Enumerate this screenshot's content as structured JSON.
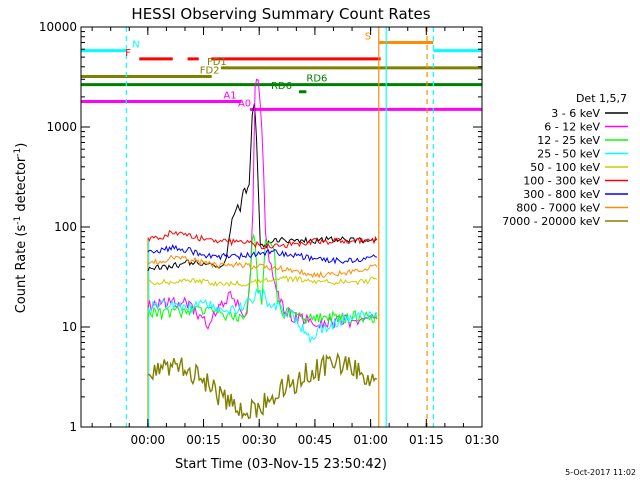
{
  "chart_data": {
    "type": "line",
    "title": "HESSI Observing Summary Count Rates",
    "xlabel": "Start Time (03-Nov-15 23:50:42)",
    "ylabel_main": "Count Rate (s",
    "ylabel_sup": "-1",
    "ylabel_tail": " detector",
    "ylabel_sup2": "-1",
    "ylabel_close": ")",
    "y_scale": "log",
    "ylim": [
      1,
      10000
    ],
    "xlim_minutes": [
      -8.7,
      99.3
    ],
    "x_ticks": [
      {
        "label": "00:00",
        "m": 9.3
      },
      {
        "label": "00:15",
        "m": 24.3
      },
      {
        "label": "00:30",
        "m": 39.3
      },
      {
        "label": "00:45",
        "m": 54.3
      },
      {
        "label": "01:00",
        "m": 69.3
      },
      {
        "label": "01:15",
        "m": 84.3
      },
      {
        "label": "01:30",
        "m": 99.3
      }
    ],
    "y_ticks": [
      {
        "label": "1",
        "v": 1
      },
      {
        "label": "10",
        "v": 10
      },
      {
        "label": "100",
        "v": 100
      },
      {
        "label": "1000",
        "v": 1000
      },
      {
        "label": "10000",
        "v": 10000
      }
    ],
    "legend_title": "Det 1,5,7",
    "legend_position": "right",
    "series": [
      {
        "name": "3 - 6 keV",
        "color": "#000000",
        "x": [
          9.3,
          12,
          15,
          18,
          21,
          24,
          26,
          28,
          29.5,
          30.5,
          32,
          33.5,
          34.2,
          35,
          35.8,
          36.6,
          37.4,
          38,
          38.6,
          39.6,
          40.5,
          41.2,
          41.8,
          42.6,
          43.4,
          45,
          48,
          51,
          54,
          57,
          60,
          63,
          66,
          69,
          71
        ],
        "y": [
          38,
          39,
          40,
          42,
          45,
          43,
          41,
          40,
          41,
          52,
          115,
          165,
          150,
          250,
          210,
          270,
          1300,
          1800,
          700,
          70,
          62,
          64,
          70,
          72,
          75,
          76,
          74,
          73,
          72,
          75,
          76,
          74,
          73,
          72,
          75
        ]
      },
      {
        "name": "6 - 12 keV",
        "color": "#ff00ff",
        "x": [
          9.3,
          12,
          15,
          18,
          20,
          22,
          24,
          25.5,
          26.5,
          28,
          30,
          31.5,
          33,
          34.5,
          36,
          37,
          37.6,
          38.2,
          39,
          40,
          41,
          42.5,
          44,
          46,
          48,
          50,
          53,
          56,
          59,
          62,
          65,
          68,
          71
        ],
        "y": [
          16,
          17,
          17.5,
          18,
          17,
          14,
          12,
          11,
          13,
          15,
          17,
          21,
          18,
          14,
          13,
          40,
          150,
          2700,
          3000,
          1100,
          80,
          40,
          22,
          15,
          13,
          12,
          12,
          11,
          11,
          12,
          11,
          11,
          12
        ]
      },
      {
        "name": "12 - 25 keV",
        "color": "#00ff00",
        "x": [
          9.3,
          13,
          17,
          21,
          25,
          29,
          32,
          34,
          35.5,
          36.6,
          37.4,
          38.2,
          39,
          40,
          41,
          42,
          43.4,
          44.2,
          45,
          46,
          48,
          51,
          54,
          57,
          60,
          63,
          66,
          69,
          71
        ],
        "y": [
          14,
          13.5,
          14,
          15,
          14,
          13,
          12.5,
          13,
          14,
          20,
          78,
          70,
          25,
          18,
          80,
          70,
          60,
          20,
          16,
          14,
          13,
          12.5,
          12,
          13,
          12.5,
          12,
          13,
          12.5,
          12
        ]
      },
      {
        "name": "25 - 50 keV",
        "color": "#00ffff",
        "x": [
          9.3,
          12,
          15,
          18,
          21,
          24,
          27,
          30,
          33,
          35,
          37,
          38.5,
          40,
          41.5,
          43,
          45,
          47,
          49,
          51,
          53,
          54,
          55,
          57,
          60,
          63,
          66,
          69,
          71
        ],
        "y": [
          15,
          16,
          17,
          16,
          16,
          17,
          15.5,
          14.5,
          15,
          16,
          18,
          21,
          22,
          18,
          16,
          15,
          14,
          12,
          9.5,
          8,
          7,
          9,
          10,
          11,
          12,
          13,
          13.5,
          14
        ]
      },
      {
        "name": "50 - 100 keV",
        "color": "#cccc00",
        "x": [
          9.3,
          15,
          20,
          25,
          30,
          35,
          40,
          45,
          50,
          55,
          60,
          65,
          71
        ],
        "y": [
          28,
          28,
          30,
          28,
          27,
          27,
          29,
          31,
          30,
          29,
          28,
          28,
          30
        ]
      },
      {
        "name": "100 - 300 keV",
        "color": "#ff0000",
        "x": [
          9.3,
          13,
          16,
          19,
          22,
          25,
          28,
          31,
          34,
          37,
          40,
          43,
          45,
          48,
          51,
          54,
          57,
          60,
          63,
          66,
          69,
          71
        ],
        "y": [
          76,
          80,
          88,
          84,
          80,
          74,
          70,
          71,
          69,
          70,
          64,
          64,
          66,
          67,
          70,
          72,
          70,
          72,
          73,
          72,
          73,
          74
        ]
      },
      {
        "name": "300 - 800 keV",
        "color": "#0000ff",
        "x": [
          9.3,
          13,
          16,
          19,
          22,
          25,
          28,
          31,
          34,
          37,
          40,
          43,
          46,
          49,
          52,
          55,
          58,
          61,
          64,
          67,
          71
        ],
        "y": [
          55,
          58,
          62,
          60,
          56,
          52,
          50,
          52,
          51,
          53,
          55,
          56,
          54,
          52,
          50,
          48,
          47,
          46,
          46,
          48,
          50
        ]
      },
      {
        "name": "800 - 7000 keV",
        "color": "#ff8c00",
        "x": [
          9.3,
          13,
          16,
          19,
          22,
          25,
          28,
          31,
          34,
          37,
          40,
          43,
          46,
          49,
          52,
          55,
          58,
          61,
          64,
          67,
          71
        ],
        "y": [
          44,
          46,
          50,
          48,
          46,
          43,
          41,
          41,
          42,
          41,
          40,
          39,
          38,
          36,
          34,
          33,
          33,
          34,
          36,
          38,
          40
        ]
      },
      {
        "name": "7000 - 20000 keV",
        "color": "#808000",
        "x": [
          9.3,
          12,
          15,
          18,
          21,
          24,
          27,
          30,
          33,
          36,
          39,
          42,
          45,
          48,
          51,
          54,
          57,
          60,
          63,
          66,
          69,
          71
        ],
        "y": [
          3.3,
          3.8,
          4.1,
          3.9,
          3.6,
          3.0,
          2.3,
          2.0,
          1.5,
          1.4,
          1.6,
          2.0,
          2.4,
          2.7,
          3.2,
          3.6,
          3.9,
          4.1,
          4.0,
          3.8,
          3.2,
          3.0
        ]
      }
    ],
    "flags": [
      {
        "label": "N",
        "color": "#00ffff",
        "v": 5800,
        "segments": [
          [
            -8.7,
            3.5
          ],
          [
            86.2,
            99.3
          ]
        ]
      },
      {
        "label": "S",
        "color": "#ff8c00",
        "v": 7000,
        "segments": [
          [
            71.5,
            86.2
          ]
        ]
      },
      {
        "label": "F",
        "color": "#ff0000",
        "v": 4800,
        "segments": [
          [
            7,
            16
          ],
          [
            20,
            23
          ],
          [
            26.4,
            72
          ]
        ]
      },
      {
        "label": "FD1",
        "color": "#808000",
        "v": 3900,
        "segments": [
          [
            29,
            99.3
          ]
        ]
      },
      {
        "label": "FD2",
        "color": "#808000",
        "v": 3200,
        "segments": [
          [
            -8.7,
            26.5
          ]
        ]
      },
      {
        "label": "RD6",
        "color": "#008000",
        "v": 2650,
        "segments": [
          [
            -8.7,
            99.3
          ]
        ]
      },
      {
        "label": "RD6",
        "color": "#008000",
        "v": 2250,
        "segments": [
          [
            50,
            52
          ]
        ]
      },
      {
        "label": "A1",
        "color": "#ff00ff",
        "v": 1800,
        "segments": [
          [
            -8.7,
            34.5
          ]
        ]
      },
      {
        "label": "A0",
        "color": "#ff00ff",
        "v": 1500,
        "segments": [
          [
            36.8,
            99.3
          ]
        ]
      }
    ],
    "vlines": [
      {
        "m": 3.5,
        "color": "#00ffff",
        "dash": true
      },
      {
        "m": 71.5,
        "color": "#ff8c00",
        "dash": false
      },
      {
        "m": 73.5,
        "color": "#00ffff",
        "dash": false
      },
      {
        "m": 84.5,
        "color": "#ff8c00",
        "dash": true
      },
      {
        "m": 86.2,
        "color": "#00ffff",
        "dash": true
      }
    ],
    "footer": "5-Oct-2017 11:02"
  }
}
